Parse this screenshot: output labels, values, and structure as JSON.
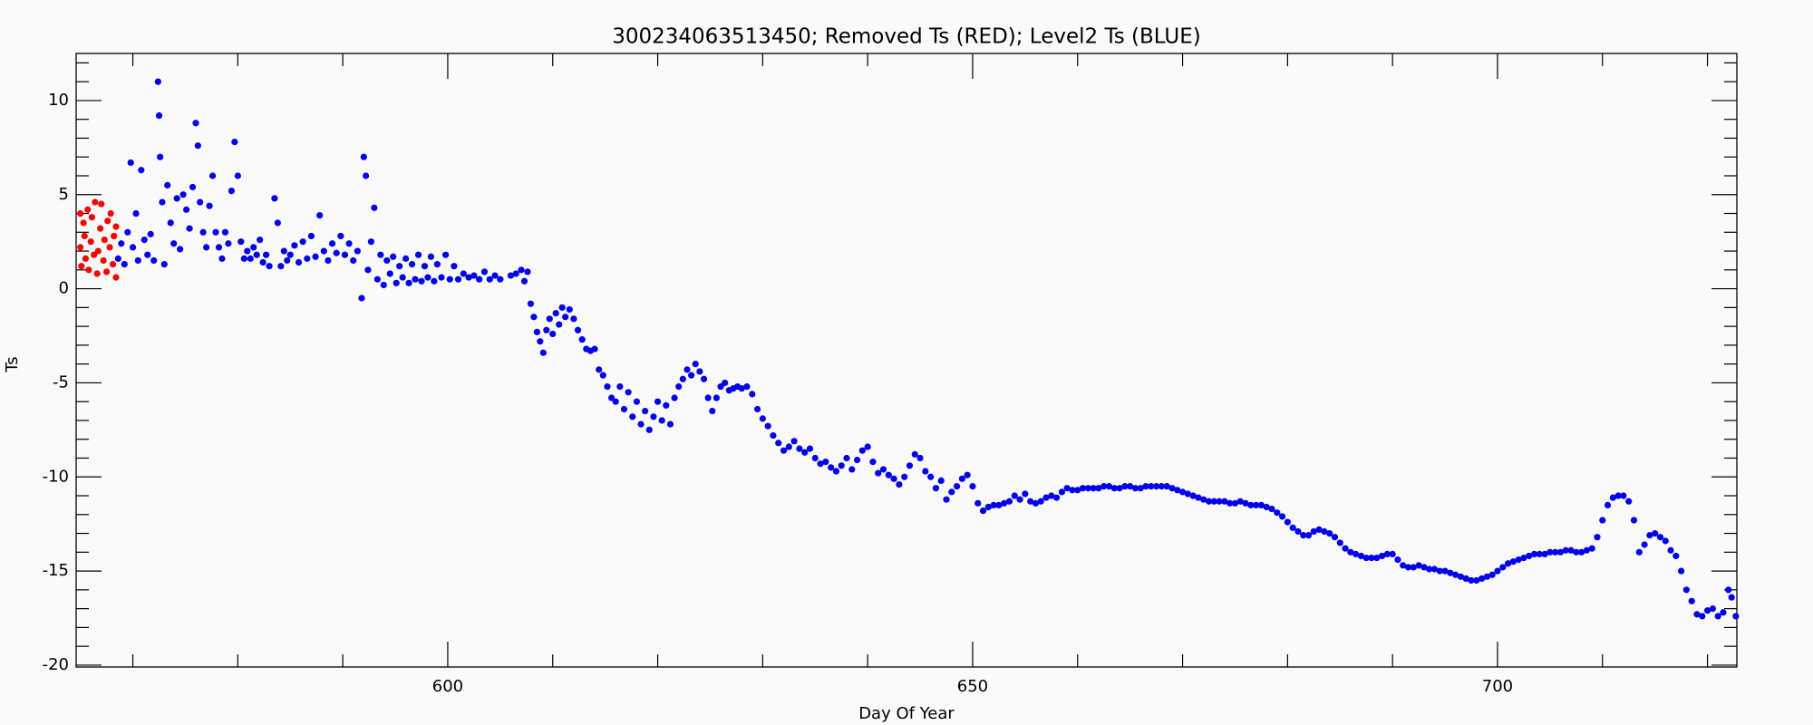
{
  "chart_data": {
    "type": "scatter",
    "title": "300234063513450; Removed Ts (RED); Level2 Ts (BLUE)",
    "xlabel": "Day Of Year",
    "ylabel": "Ts",
    "xlim": [
      564.6,
      722.8
    ],
    "ylim": [
      -20.1,
      12.5
    ],
    "xticks": [
      600,
      650,
      700
    ],
    "yticks": [
      10,
      5,
      0,
      -5,
      -10,
      -15,
      -20
    ],
    "xminorticks": [
      570,
      580,
      590,
      610,
      620,
      630,
      640,
      660,
      670,
      680,
      690,
      710,
      720
    ],
    "yminorticks": [
      12,
      11,
      9,
      8,
      7,
      6,
      4,
      3,
      2,
      1,
      -1,
      -2,
      -3,
      -4,
      -6,
      -7,
      -8,
      -9,
      -11,
      -12,
      -13,
      -14,
      -16,
      -17,
      -18,
      -19
    ],
    "series": [
      {
        "color": "#ff0000",
        "x": [
          565.0,
          565.0,
          565.1,
          565.3,
          565.4,
          565.5,
          565.7,
          565.8,
          566.0,
          566.1,
          566.3,
          566.4,
          566.6,
          566.7,
          566.9,
          567.0,
          567.2,
          567.3,
          567.5,
          567.6,
          567.8,
          567.9,
          568.1,
          568.2,
          568.4,
          568.4
        ],
        "values": [
          4.0,
          2.2,
          1.2,
          3.5,
          2.8,
          1.6,
          4.2,
          1.0,
          2.5,
          3.8,
          1.8,
          4.6,
          0.8,
          2.0,
          3.2,
          4.5,
          1.5,
          2.6,
          0.9,
          3.6,
          2.2,
          4.0,
          1.3,
          2.8,
          0.6,
          3.3
        ]
      },
      {
        "color": "#0000ee",
        "x": [
          568.6,
          568.9,
          569.2,
          569.5,
          569.8,
          570.0,
          570.3,
          570.5,
          570.8,
          571.1,
          571.4,
          571.7,
          572.0,
          572.4,
          572.5,
          572.6,
          572.8,
          573.0,
          573.3,
          573.6,
          573.9,
          574.2,
          574.5,
          574.8,
          575.1,
          575.4,
          575.7,
          576.0,
          576.2,
          576.4,
          576.7,
          577.0,
          577.3,
          577.6,
          577.9,
          578.2,
          578.5,
          578.8,
          579.1,
          579.4,
          579.7,
          580.0,
          580.3,
          580.6,
          580.9,
          581.2,
          581.5,
          581.8,
          582.1,
          582.4,
          582.7,
          583.0,
          583.5,
          583.8,
          584.1,
          584.4,
          584.7,
          585.0,
          585.4,
          585.8,
          586.2,
          586.6,
          587.0,
          587.4,
          587.8,
          588.2,
          588.6,
          589.0,
          589.4,
          589.8,
          590.2,
          590.6,
          591.0,
          591.4,
          591.8,
          592.0,
          592.2,
          592.4,
          592.7,
          593.0,
          593.3,
          593.6,
          593.9,
          594.2,
          594.5,
          594.8,
          595.1,
          595.4,
          595.7,
          596.0,
          596.3,
          596.6,
          596.9,
          597.2,
          597.5,
          597.8,
          598.1,
          598.4,
          598.7,
          599.0,
          599.4,
          599.8,
          600.2,
          600.6,
          601.0,
          601.5,
          602.0,
          602.5,
          603.0,
          603.5,
          604.0,
          604.5,
          605.0,
          606.0,
          606.5,
          607.0,
          607.3,
          607.6,
          607.9,
          608.2,
          608.5,
          608.8,
          609.1,
          609.4,
          609.7,
          610.0,
          610.3,
          610.6,
          610.9,
          611.2,
          611.6,
          612.0,
          612.4,
          612.8,
          613.2,
          613.6,
          614.0,
          614.4,
          614.8,
          615.2,
          615.6,
          616.0,
          616.4,
          616.8,
          617.2,
          617.6,
          618.0,
          618.4,
          618.8,
          619.2,
          619.6,
          620.0,
          620.4,
          620.8,
          621.2,
          621.6,
          622.0,
          622.4,
          622.8,
          623.2,
          623.6,
          624.0,
          624.4,
          624.8,
          625.2,
          625.6,
          626.0,
          626.4,
          626.8,
          627.2,
          627.6,
          628.0,
          628.5,
          629.0,
          629.5,
          630.0,
          630.5,
          631.0,
          631.5,
          632.0,
          632.5,
          633.0,
          633.5,
          634.0,
          634.5,
          635.0,
          635.5,
          636.0,
          636.5,
          637.0,
          637.5,
          638.0,
          638.5,
          639.0,
          639.5,
          640.0,
          640.5,
          641.0,
          641.5,
          642.0,
          642.5,
          643.0,
          643.5,
          644.0,
          644.5,
          645.0,
          645.5,
          646.0,
          646.5,
          647.0,
          647.5,
          648.0,
          648.5,
          649.0,
          649.5,
          650.0,
          650.5,
          651.0,
          651.5,
          652.0,
          652.5,
          653.0,
          653.5,
          654.0,
          654.5,
          655.0,
          655.5,
          656.0,
          656.5,
          657.0,
          657.5,
          658.0,
          658.5,
          659.0,
          659.5,
          660.0,
          660.5,
          661.0,
          661.5,
          662.0,
          662.5,
          663.0,
          663.5,
          664.0,
          664.5,
          665.0,
          665.5,
          666.0,
          666.5,
          667.0,
          667.5,
          668.0,
          668.5,
          669.0,
          669.5,
          670.0,
          670.5,
          671.0,
          671.5,
          672.0,
          672.5,
          673.0,
          673.5,
          674.0,
          674.5,
          675.0,
          675.5,
          676.0,
          676.5,
          677.0,
          677.5,
          678.0,
          678.5,
          679.0,
          679.5,
          680.0,
          680.5,
          681.0,
          681.5,
          682.0,
          682.5,
          683.0,
          683.5,
          684.0,
          684.5,
          685.0,
          685.5,
          686.0,
          686.5,
          687.0,
          687.5,
          688.0,
          688.5,
          689.0,
          689.5,
          690.0,
          690.5,
          691.0,
          691.5,
          692.0,
          692.5,
          693.0,
          693.5,
          694.0,
          694.5,
          695.0,
          695.5,
          696.0,
          696.5,
          697.0,
          697.5,
          698.0,
          698.5,
          699.0,
          699.5,
          700.0,
          700.5,
          701.0,
          701.5,
          702.0,
          702.5,
          703.0,
          703.5,
          704.0,
          704.5,
          705.0,
          705.5,
          706.0,
          706.5,
          707.0,
          707.5,
          708.0,
          708.5,
          709.0,
          709.5,
          710.0,
          710.5,
          711.0,
          711.5,
          712.0,
          712.5,
          713.0,
          713.5,
          714.0,
          714.5,
          715.0,
          715.5,
          716.0,
          716.5,
          717.0,
          717.5,
          718.0,
          718.5,
          719.0,
          719.5,
          720.0,
          720.5,
          721.0,
          721.5,
          722.0,
          722.3,
          722.7
        ],
        "values": [
          1.6,
          2.4,
          1.3,
          3.0,
          6.7,
          2.2,
          4.0,
          1.5,
          6.3,
          2.6,
          1.8,
          2.9,
          1.5,
          11.0,
          9.2,
          7.0,
          4.6,
          1.3,
          5.5,
          3.5,
          2.4,
          4.8,
          2.1,
          5.0,
          4.2,
          3.2,
          5.4,
          8.8,
          7.6,
          4.6,
          3.0,
          2.2,
          4.4,
          6.0,
          3.0,
          2.2,
          1.6,
          3.0,
          2.4,
          5.2,
          7.8,
          6.0,
          2.5,
          1.6,
          2.0,
          1.6,
          2.2,
          1.8,
          2.6,
          1.4,
          1.8,
          1.2,
          4.8,
          3.5,
          1.2,
          2.0,
          1.5,
          1.8,
          2.3,
          1.4,
          2.5,
          1.6,
          2.8,
          1.7,
          3.9,
          2.0,
          1.5,
          2.4,
          1.9,
          2.8,
          1.8,
          2.4,
          1.5,
          2.0,
          -0.5,
          7.0,
          6.0,
          1.0,
          2.5,
          4.3,
          0.5,
          1.8,
          0.2,
          1.5,
          0.8,
          1.7,
          0.3,
          1.2,
          0.6,
          1.6,
          0.3,
          1.3,
          0.5,
          1.8,
          0.4,
          1.2,
          0.6,
          1.7,
          0.4,
          1.3,
          0.6,
          1.8,
          0.5,
          1.2,
          0.5,
          0.8,
          0.6,
          0.7,
          0.5,
          0.9,
          0.5,
          0.7,
          0.5,
          0.7,
          0.8,
          1.0,
          0.4,
          0.9,
          -0.8,
          -1.5,
          -2.3,
          -2.8,
          -3.4,
          -2.2,
          -1.6,
          -2.4,
          -1.3,
          -1.9,
          -1.0,
          -1.5,
          -1.1,
          -1.6,
          -2.2,
          -2.7,
          -3.2,
          -3.3,
          -3.2,
          -4.3,
          -4.6,
          -5.2,
          -5.8,
          -6.0,
          -5.2,
          -6.4,
          -5.5,
          -6.8,
          -6.0,
          -7.2,
          -6.5,
          -7.5,
          -6.8,
          -6.0,
          -7.0,
          -6.2,
          -7.2,
          -5.8,
          -5.2,
          -4.8,
          -4.3,
          -4.6,
          -4.0,
          -4.4,
          -4.8,
          -5.8,
          -6.5,
          -5.8,
          -5.2,
          -5.0,
          -5.4,
          -5.3,
          -5.2,
          -5.3,
          -5.2,
          -5.6,
          -6.4,
          -6.9,
          -7.3,
          -7.8,
          -8.2,
          -8.6,
          -8.4,
          -8.1,
          -8.5,
          -8.7,
          -8.5,
          -9.0,
          -9.3,
          -9.2,
          -9.5,
          -9.7,
          -9.4,
          -9.0,
          -9.6,
          -9.1,
          -8.6,
          -8.4,
          -9.2,
          -9.8,
          -9.6,
          -9.9,
          -10.1,
          -10.4,
          -10.0,
          -9.4,
          -8.8,
          -9.0,
          -9.7,
          -10.0,
          -10.6,
          -10.2,
          -11.2,
          -10.8,
          -10.5,
          -10.1,
          -9.9,
          -10.5,
          -11.4,
          -11.8,
          -11.6,
          -11.5,
          -11.5,
          -11.4,
          -11.3,
          -11.0,
          -11.2,
          -10.9,
          -11.3,
          -11.4,
          -11.3,
          -11.1,
          -11.0,
          -11.1,
          -10.8,
          -10.6,
          -10.7,
          -10.7,
          -10.6,
          -10.6,
          -10.6,
          -10.6,
          -10.5,
          -10.5,
          -10.6,
          -10.6,
          -10.5,
          -10.5,
          -10.6,
          -10.6,
          -10.5,
          -10.5,
          -10.5,
          -10.5,
          -10.5,
          -10.6,
          -10.7,
          -10.8,
          -10.9,
          -11.0,
          -11.1,
          -11.2,
          -11.3,
          -11.3,
          -11.3,
          -11.3,
          -11.4,
          -11.4,
          -11.3,
          -11.4,
          -11.5,
          -11.5,
          -11.5,
          -11.6,
          -11.7,
          -11.9,
          -12.1,
          -12.4,
          -12.7,
          -12.9,
          -13.1,
          -13.1,
          -12.9,
          -12.8,
          -12.9,
          -13.0,
          -13.2,
          -13.5,
          -13.8,
          -14.0,
          -14.1,
          -14.2,
          -14.3,
          -14.3,
          -14.3,
          -14.2,
          -14.1,
          -14.1,
          -14.4,
          -14.7,
          -14.8,
          -14.8,
          -14.7,
          -14.8,
          -14.9,
          -14.9,
          -15.0,
          -15.0,
          -15.1,
          -15.2,
          -15.3,
          -15.4,
          -15.5,
          -15.5,
          -15.4,
          -15.3,
          -15.2,
          -15.0,
          -14.8,
          -14.6,
          -14.5,
          -14.4,
          -14.3,
          -14.2,
          -14.1,
          -14.1,
          -14.1,
          -14.0,
          -14.0,
          -14.0,
          -13.9,
          -13.9,
          -14.0,
          -14.0,
          -13.9,
          -13.8,
          -13.2,
          -12.3,
          -11.5,
          -11.1,
          -11.0,
          -11.0,
          -11.3,
          -12.3,
          -14.0,
          -13.6,
          -13.1,
          -13.0,
          -13.2,
          -13.4,
          -13.9,
          -14.2,
          -15.0,
          -16.0,
          -16.6,
          -17.3,
          -17.4,
          -17.1,
          -17.0,
          -17.4,
          -17.2,
          -16.0,
          -16.4,
          -17.4
        ]
      }
    ]
  }
}
